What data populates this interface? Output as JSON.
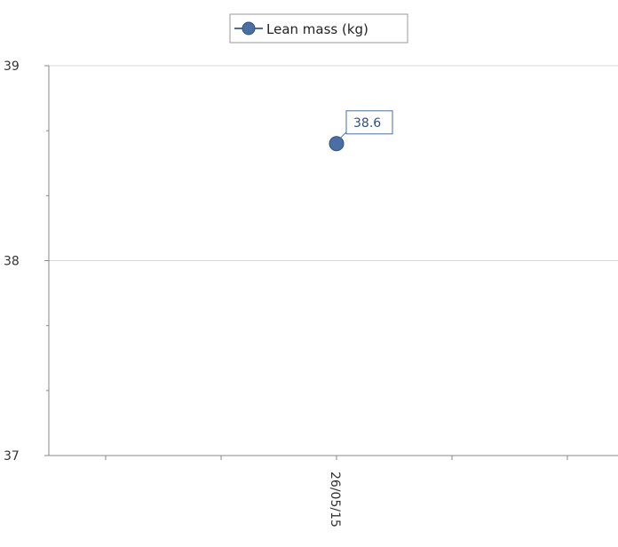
{
  "chart_data": {
    "type": "line",
    "title": "",
    "xlabel": "",
    "ylabel": "",
    "categories": [
      "26/05/15"
    ],
    "series": [
      {
        "name": "Lean mass (kg)",
        "values": [
          38.6
        ],
        "data_labels": [
          "38.6"
        ]
      }
    ],
    "ylim": [
      37,
      39
    ],
    "y_ticks": [
      "37",
      "38",
      "39"
    ],
    "grid": "horizontal major gridlines",
    "legend": "top-center",
    "colors": {
      "series": "#4a6fa5",
      "series_dark": "#2f4f7f",
      "grid": "#d9d9d9",
      "axis": "#888888",
      "label_border": "#4a6fa5"
    }
  }
}
